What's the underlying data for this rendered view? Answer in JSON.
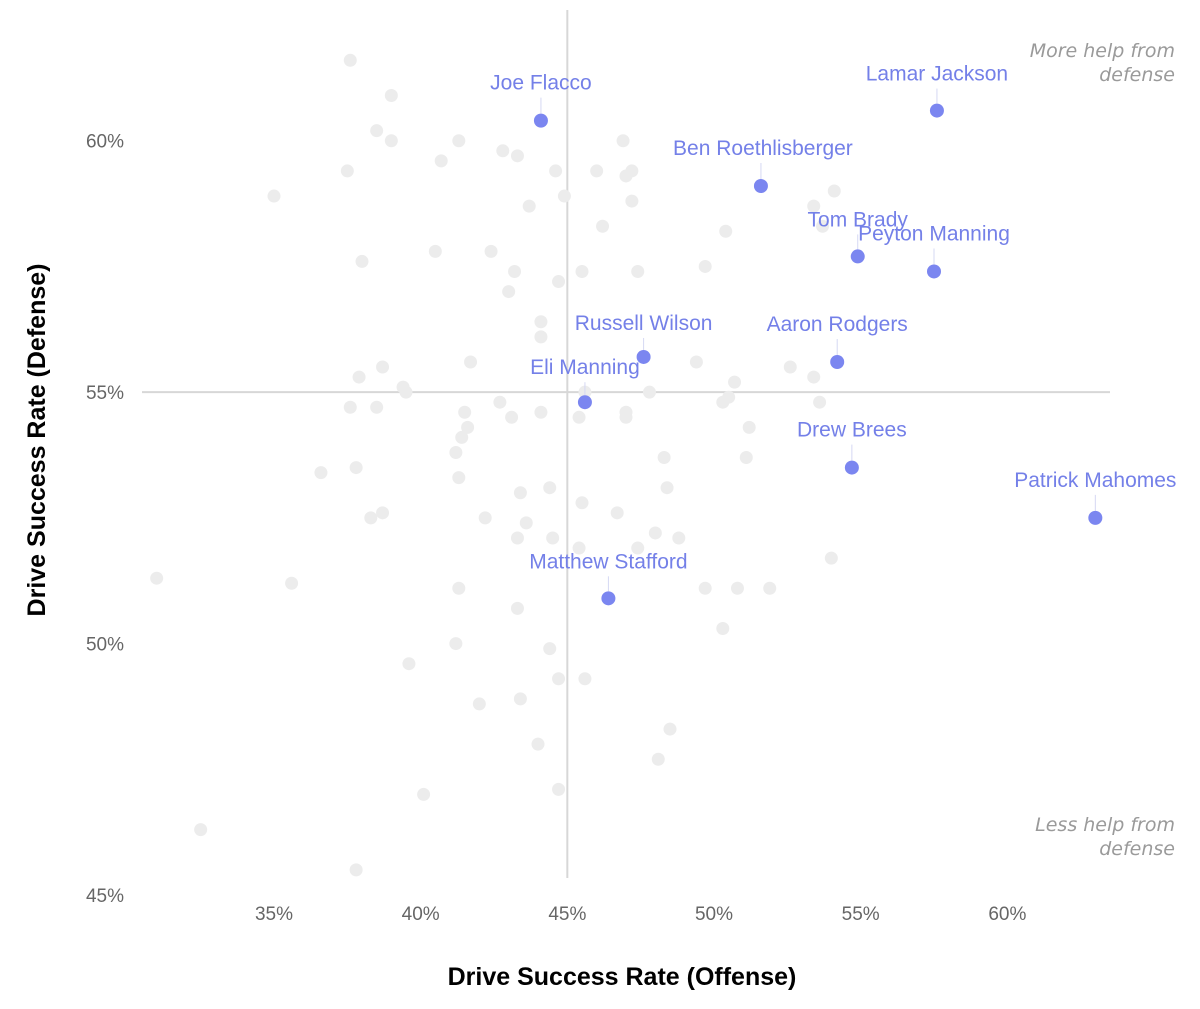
{
  "chart_data": {
    "type": "scatter",
    "xlabel": "Drive Success Rate (Offense)",
    "ylabel": "Drive Success Rate (Defense)",
    "xlim": [
      0.305,
      0.635
    ],
    "ylim": [
      0.45,
      0.626
    ],
    "x_ticks": [
      {
        "value": 0.35,
        "label": "35%"
      },
      {
        "value": 0.4,
        "label": "40%"
      },
      {
        "value": 0.45,
        "label": "45%"
      },
      {
        "value": 0.5,
        "label": "50%"
      },
      {
        "value": 0.55,
        "label": "55%"
      },
      {
        "value": 0.6,
        "label": "60%"
      }
    ],
    "y_ticks": [
      {
        "value": 0.45,
        "label": "45%"
      },
      {
        "value": 0.5,
        "label": "50%"
      },
      {
        "value": 0.55,
        "label": "55%"
      },
      {
        "value": 0.6,
        "label": "60%"
      }
    ],
    "reference_lines": {
      "x": 0.45,
      "y": 0.55
    },
    "grid": false,
    "colors": {
      "highlight": "#7b86f0",
      "highlight_text": "#7480e8",
      "background_points": "#ececec",
      "reference_line": "#d7d7d7"
    },
    "annotations": [
      {
        "lines": [
          "More help from",
          "defense"
        ],
        "position": "top-right"
      },
      {
        "lines": [
          "Less help from",
          "defense"
        ],
        "position": "bottom-right"
      }
    ],
    "highlighted": [
      {
        "name": "Joe Flacco",
        "x": 0.441,
        "y": 0.604
      },
      {
        "name": "Lamar Jackson",
        "x": 0.576,
        "y": 0.606
      },
      {
        "name": "Ben Roethlisberger",
        "x": 0.516,
        "y": 0.591
      },
      {
        "name": "Tom Brady",
        "x": 0.549,
        "y": 0.577
      },
      {
        "name": "Peyton Manning",
        "x": 0.575,
        "y": 0.574
      },
      {
        "name": "Russell Wilson",
        "x": 0.476,
        "y": 0.557
      },
      {
        "name": "Aaron Rodgers",
        "x": 0.542,
        "y": 0.556
      },
      {
        "name": "Eli Manning",
        "x": 0.456,
        "y": 0.548
      },
      {
        "name": "Drew Brees",
        "x": 0.547,
        "y": 0.535
      },
      {
        "name": "Patrick Mahomes",
        "x": 0.63,
        "y": 0.525
      },
      {
        "name": "Matthew Stafford",
        "x": 0.464,
        "y": 0.509
      }
    ],
    "others": [
      [
        0.376,
        0.616
      ],
      [
        0.39,
        0.609
      ],
      [
        0.385,
        0.602
      ],
      [
        0.39,
        0.6
      ],
      [
        0.413,
        0.6
      ],
      [
        0.375,
        0.594
      ],
      [
        0.407,
        0.596
      ],
      [
        0.428,
        0.598
      ],
      [
        0.433,
        0.597
      ],
      [
        0.35,
        0.589
      ],
      [
        0.446,
        0.594
      ],
      [
        0.46,
        0.594
      ],
      [
        0.469,
        0.6
      ],
      [
        0.47,
        0.593
      ],
      [
        0.472,
        0.594
      ],
      [
        0.449,
        0.589
      ],
      [
        0.437,
        0.587
      ],
      [
        0.472,
        0.588
      ],
      [
        0.462,
        0.583
      ],
      [
        0.504,
        0.582
      ],
      [
        0.534,
        0.587
      ],
      [
        0.541,
        0.59
      ],
      [
        0.537,
        0.583
      ],
      [
        0.38,
        0.576
      ],
      [
        0.405,
        0.578
      ],
      [
        0.424,
        0.578
      ],
      [
        0.432,
        0.574
      ],
      [
        0.43,
        0.57
      ],
      [
        0.447,
        0.572
      ],
      [
        0.455,
        0.574
      ],
      [
        0.474,
        0.574
      ],
      [
        0.497,
        0.575
      ],
      [
        0.441,
        0.564
      ],
      [
        0.441,
        0.561
      ],
      [
        0.417,
        0.556
      ],
      [
        0.379,
        0.553
      ],
      [
        0.387,
        0.555
      ],
      [
        0.394,
        0.551
      ],
      [
        0.395,
        0.55
      ],
      [
        0.376,
        0.547
      ],
      [
        0.385,
        0.547
      ],
      [
        0.415,
        0.546
      ],
      [
        0.416,
        0.543
      ],
      [
        0.414,
        0.541
      ],
      [
        0.412,
        0.538
      ],
      [
        0.427,
        0.548
      ],
      [
        0.431,
        0.545
      ],
      [
        0.441,
        0.546
      ],
      [
        0.454,
        0.545
      ],
      [
        0.456,
        0.55
      ],
      [
        0.47,
        0.546
      ],
      [
        0.47,
        0.545
      ],
      [
        0.478,
        0.55
      ],
      [
        0.494,
        0.556
      ],
      [
        0.507,
        0.552
      ],
      [
        0.503,
        0.548
      ],
      [
        0.505,
        0.549
      ],
      [
        0.512,
        0.543
      ],
      [
        0.526,
        0.555
      ],
      [
        0.534,
        0.553
      ],
      [
        0.536,
        0.548
      ],
      [
        0.511,
        0.537
      ],
      [
        0.366,
        0.534
      ],
      [
        0.378,
        0.535
      ],
      [
        0.413,
        0.533
      ],
      [
        0.434,
        0.53
      ],
      [
        0.444,
        0.531
      ],
      [
        0.455,
        0.528
      ],
      [
        0.467,
        0.526
      ],
      [
        0.383,
        0.525
      ],
      [
        0.387,
        0.526
      ],
      [
        0.422,
        0.525
      ],
      [
        0.436,
        0.524
      ],
      [
        0.433,
        0.521
      ],
      [
        0.445,
        0.521
      ],
      [
        0.454,
        0.519
      ],
      [
        0.474,
        0.519
      ],
      [
        0.48,
        0.522
      ],
      [
        0.484,
        0.531
      ],
      [
        0.483,
        0.537
      ],
      [
        0.488,
        0.521
      ],
      [
        0.54,
        0.517
      ],
      [
        0.31,
        0.513
      ],
      [
        0.356,
        0.512
      ],
      [
        0.413,
        0.511
      ],
      [
        0.433,
        0.507
      ],
      [
        0.497,
        0.511
      ],
      [
        0.508,
        0.511
      ],
      [
        0.519,
        0.511
      ],
      [
        0.503,
        0.503
      ],
      [
        0.412,
        0.5
      ],
      [
        0.444,
        0.499
      ],
      [
        0.396,
        0.496
      ],
      [
        0.447,
        0.493
      ],
      [
        0.456,
        0.493
      ],
      [
        0.42,
        0.488
      ],
      [
        0.434,
        0.489
      ],
      [
        0.44,
        0.48
      ],
      [
        0.485,
        0.483
      ],
      [
        0.481,
        0.477
      ],
      [
        0.401,
        0.47
      ],
      [
        0.447,
        0.471
      ],
      [
        0.325,
        0.463
      ],
      [
        0.378,
        0.455
      ]
    ]
  }
}
